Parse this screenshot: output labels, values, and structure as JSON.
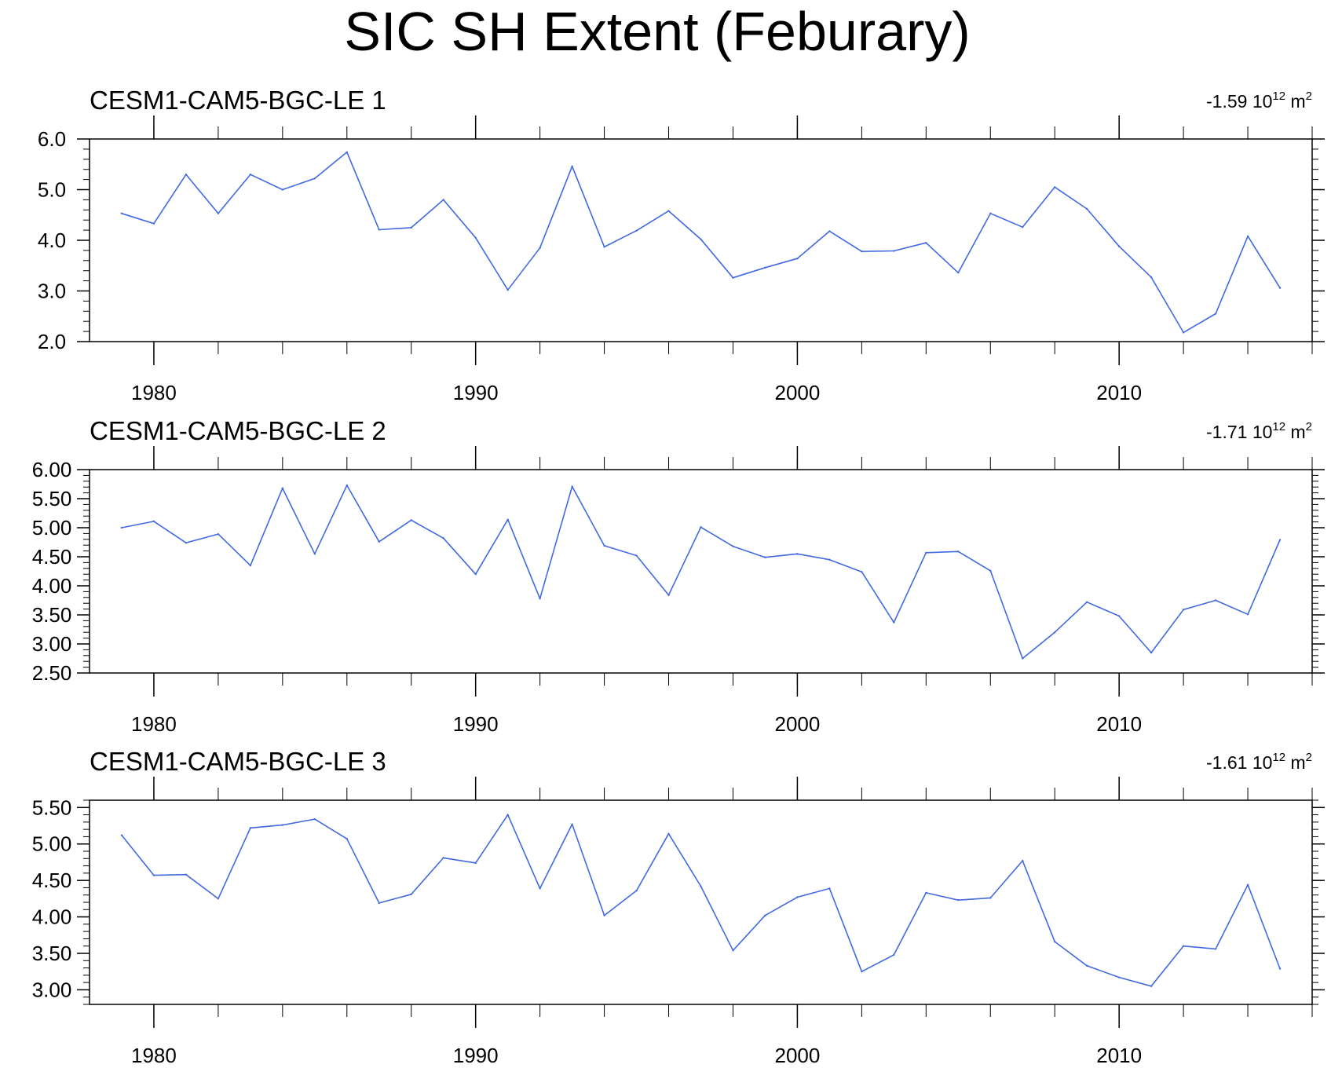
{
  "title": "SIC SH Extent (Feburary)",
  "chart_data": [
    {
      "type": "line",
      "title": "CESM1-CAM5-BGC-LE 1",
      "trend_value": "-1.59",
      "unit_base": "10",
      "unit_exp": "12",
      "unit_m": "m",
      "unit_m_exp": "2",
      "xlim": [
        1978,
        2016
      ],
      "ylim": [
        2.0,
        6.0
      ],
      "yticks": [
        2.0,
        3.0,
        4.0,
        5.0,
        6.0
      ],
      "ytick_labels": [
        "2.0",
        "3.0",
        "4.0",
        "5.0",
        "6.0"
      ],
      "yminor": 0.2,
      "xticks": [
        1980,
        1990,
        2000,
        2010
      ],
      "xtick_labels": [
        "1980",
        "1990",
        "2000",
        "2010"
      ],
      "line_color": "#4169e1",
      "x": [
        1979,
        1980,
        1981,
        1982,
        1983,
        1984,
        1985,
        1986,
        1987,
        1988,
        1989,
        1990,
        1991,
        1992,
        1993,
        1994,
        1995,
        1996,
        1997,
        1998,
        1999,
        2000,
        2001,
        2002,
        2003,
        2004,
        2005,
        2006,
        2007,
        2008,
        2009,
        2010,
        2011,
        2012,
        2013,
        2014,
        2015
      ],
      "y": [
        4.53,
        4.33,
        5.3,
        4.53,
        5.3,
        5.0,
        5.22,
        5.74,
        4.21,
        4.25,
        4.8,
        4.05,
        3.02,
        3.85,
        5.46,
        3.87,
        4.19,
        4.58,
        4.02,
        3.26,
        3.46,
        3.64,
        4.18,
        3.78,
        3.79,
        3.95,
        3.36,
        4.53,
        4.26,
        5.05,
        4.62,
        3.88,
        3.27,
        2.18,
        2.55,
        4.08,
        3.06
      ]
    },
    {
      "type": "line",
      "title": "CESM1-CAM5-BGC-LE 2",
      "trend_value": "-1.71",
      "unit_base": "10",
      "unit_exp": "12",
      "unit_m": "m",
      "unit_m_exp": "2",
      "xlim": [
        1978,
        2016
      ],
      "ylim": [
        2.5,
        6.0
      ],
      "yticks": [
        2.5,
        3.0,
        3.5,
        4.0,
        4.5,
        5.0,
        5.5,
        6.0
      ],
      "ytick_labels": [
        "2.50",
        "3.00",
        "3.50",
        "4.00",
        "4.50",
        "5.00",
        "5.50",
        "6.00"
      ],
      "yminor": 0.1,
      "xticks": [
        1980,
        1990,
        2000,
        2010
      ],
      "xtick_labels": [
        "1980",
        "1990",
        "2000",
        "2010"
      ],
      "line_color": "#4169e1",
      "x": [
        1979,
        1980,
        1981,
        1982,
        1983,
        1984,
        1985,
        1986,
        1987,
        1988,
        1989,
        1990,
        1991,
        1992,
        1993,
        1994,
        1995,
        1996,
        1997,
        1998,
        1999,
        2000,
        2001,
        2002,
        2003,
        2004,
        2005,
        2006,
        2007,
        2008,
        2009,
        2010,
        2011,
        2012,
        2013,
        2014,
        2015
      ],
      "y": [
        5.0,
        5.11,
        4.74,
        4.89,
        4.35,
        5.68,
        4.55,
        5.73,
        4.76,
        5.13,
        4.82,
        4.2,
        5.14,
        3.78,
        5.71,
        4.69,
        4.52,
        3.84,
        5.01,
        4.68,
        4.49,
        4.55,
        4.45,
        4.24,
        3.37,
        4.57,
        4.59,
        4.26,
        2.75,
        3.2,
        3.72,
        3.48,
        2.85,
        3.59,
        3.75,
        3.51,
        4.79
      ]
    },
    {
      "type": "line",
      "title": "CESM1-CAM5-BGC-LE 3",
      "trend_value": "-1.61",
      "unit_base": "10",
      "unit_exp": "12",
      "unit_m": "m",
      "unit_m_exp": "2",
      "xlim": [
        1978,
        2016
      ],
      "ylim": [
        2.8,
        5.6
      ],
      "yticks": [
        3.0,
        3.5,
        4.0,
        4.5,
        5.0,
        5.5
      ],
      "ytick_labels": [
        "3.00",
        "3.50",
        "4.00",
        "4.50",
        "5.00",
        "5.50"
      ],
      "yminor": 0.1,
      "xticks": [
        1980,
        1990,
        2000,
        2010
      ],
      "xtick_labels": [
        "1980",
        "1990",
        "2000",
        "2010"
      ],
      "line_color": "#4169e1",
      "x": [
        1979,
        1980,
        1981,
        1982,
        1983,
        1984,
        1985,
        1986,
        1987,
        1988,
        1989,
        1990,
        1991,
        1992,
        1993,
        1994,
        1995,
        1996,
        1997,
        1998,
        1999,
        2000,
        2001,
        2002,
        2003,
        2004,
        2005,
        2006,
        2007,
        2008,
        2009,
        2010,
        2011,
        2012,
        2013,
        2014,
        2015
      ],
      "y": [
        5.12,
        4.57,
        4.58,
        4.25,
        5.22,
        5.26,
        5.34,
        5.07,
        4.19,
        4.31,
        4.81,
        4.74,
        5.4,
        4.39,
        5.27,
        4.02,
        4.36,
        5.14,
        4.42,
        3.54,
        4.02,
        4.27,
        4.39,
        3.25,
        3.48,
        4.33,
        4.23,
        4.26,
        4.77,
        3.66,
        3.33,
        3.17,
        3.05,
        3.6,
        3.56,
        4.44,
        3.29
      ]
    }
  ]
}
